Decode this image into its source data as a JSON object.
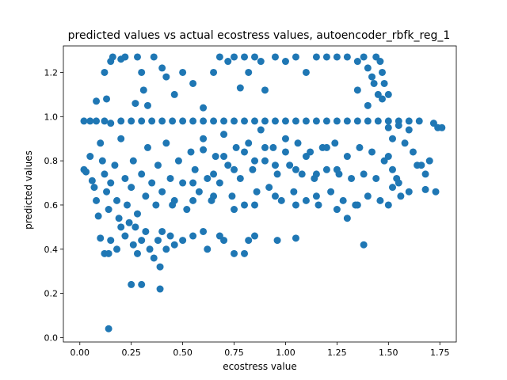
{
  "chart_data": {
    "type": "scatter",
    "title": "predicted values vs actual ecostress values, autoencoder_rbfk_reg_1",
    "xlabel": "ecostress value",
    "ylabel": "predicted values",
    "xlim": [
      -0.08,
      1.83
    ],
    "ylim": [
      -0.02,
      1.32
    ],
    "xticks": [
      0.0,
      0.25,
      0.5,
      0.75,
      1.0,
      1.25,
      1.5,
      1.75
    ],
    "xtick_labels": [
      "0.00",
      "0.25",
      "0.50",
      "0.75",
      "1.00",
      "1.25",
      "1.50",
      "1.75"
    ],
    "yticks": [
      0.0,
      0.2,
      0.4,
      0.6,
      0.8,
      1.0,
      1.2
    ],
    "ytick_labels": [
      "0.0",
      "0.2",
      "0.4",
      "0.6",
      "0.8",
      "1.0",
      "1.2"
    ],
    "grid": false,
    "marker_color": "#1f77b4",
    "points": [
      [
        0.02,
        0.98
      ],
      [
        0.05,
        0.98
      ],
      [
        0.08,
        0.98
      ],
      [
        0.12,
        0.98
      ],
      [
        0.15,
        0.97
      ],
      [
        0.2,
        0.98
      ],
      [
        0.25,
        0.98
      ],
      [
        0.3,
        0.98
      ],
      [
        0.35,
        0.98
      ],
      [
        0.4,
        0.98
      ],
      [
        0.45,
        0.98
      ],
      [
        0.5,
        0.98
      ],
      [
        0.55,
        0.98
      ],
      [
        0.6,
        0.98
      ],
      [
        0.65,
        0.98
      ],
      [
        0.7,
        0.98
      ],
      [
        0.75,
        0.98
      ],
      [
        0.8,
        0.98
      ],
      [
        0.85,
        0.98
      ],
      [
        0.9,
        0.98
      ],
      [
        0.95,
        0.98
      ],
      [
        1.0,
        0.98
      ],
      [
        1.05,
        0.98
      ],
      [
        1.1,
        0.98
      ],
      [
        1.15,
        0.98
      ],
      [
        1.2,
        0.98
      ],
      [
        1.25,
        0.98
      ],
      [
        1.3,
        0.98
      ],
      [
        1.35,
        0.98
      ],
      [
        1.4,
        0.98
      ],
      [
        1.45,
        0.98
      ],
      [
        1.5,
        0.98
      ],
      [
        1.55,
        0.98
      ],
      [
        1.6,
        0.98
      ],
      [
        1.65,
        0.98
      ],
      [
        0.02,
        0.76
      ],
      [
        0.03,
        0.75
      ],
      [
        0.05,
        0.82
      ],
      [
        0.06,
        0.71
      ],
      [
        0.07,
        0.68
      ],
      [
        0.08,
        0.62
      ],
      [
        0.09,
        0.55
      ],
      [
        0.1,
        0.88
      ],
      [
        0.11,
        0.8
      ],
      [
        0.12,
        0.74
      ],
      [
        0.13,
        0.66
      ],
      [
        0.14,
        0.58
      ],
      [
        0.15,
        0.7
      ],
      [
        0.17,
        0.78
      ],
      [
        0.18,
        0.62
      ],
      [
        0.19,
        0.54
      ],
      [
        0.2,
        0.9
      ],
      [
        0.22,
        0.72
      ],
      [
        0.23,
        0.6
      ],
      [
        0.25,
        0.68
      ],
      [
        0.26,
        0.8
      ],
      [
        0.28,
        0.56
      ],
      [
        0.3,
        0.74
      ],
      [
        0.32,
        0.64
      ],
      [
        0.33,
        0.86
      ],
      [
        0.35,
        0.7
      ],
      [
        0.37,
        0.6
      ],
      [
        0.38,
        0.78
      ],
      [
        0.4,
        0.66
      ],
      [
        0.42,
        0.88
      ],
      [
        0.44,
        0.72
      ],
      [
        0.46,
        0.62
      ],
      [
        0.48,
        0.8
      ],
      [
        0.5,
        0.7
      ],
      [
        0.52,
        0.58
      ],
      [
        0.54,
        0.84
      ],
      [
        0.56,
        0.76
      ],
      [
        0.58,
        0.66
      ],
      [
        0.6,
        0.9
      ],
      [
        0.62,
        0.72
      ],
      [
        0.64,
        0.62
      ],
      [
        0.66,
        0.82
      ],
      [
        0.68,
        0.7
      ],
      [
        0.7,
        0.92
      ],
      [
        0.72,
        0.78
      ],
      [
        0.74,
        0.64
      ],
      [
        0.76,
        0.86
      ],
      [
        0.78,
        0.72
      ],
      [
        0.8,
        0.6
      ],
      [
        0.82,
        0.88
      ],
      [
        0.84,
        0.76
      ],
      [
        0.86,
        0.66
      ],
      [
        0.88,
        0.94
      ],
      [
        0.9,
        0.8
      ],
      [
        0.92,
        0.68
      ],
      [
        0.94,
        0.86
      ],
      [
        0.96,
        0.74
      ],
      [
        0.98,
        0.62
      ],
      [
        1.0,
        0.9
      ],
      [
        1.02,
        0.78
      ],
      [
        1.04,
        0.66
      ],
      [
        1.06,
        0.88
      ],
      [
        1.08,
        0.74
      ],
      [
        1.1,
        0.62
      ],
      [
        1.12,
        0.84
      ],
      [
        1.14,
        0.72
      ],
      [
        1.16,
        0.6
      ],
      [
        1.18,
        0.86
      ],
      [
        1.2,
        0.76
      ],
      [
        1.22,
        0.66
      ],
      [
        1.24,
        0.88
      ],
      [
        1.26,
        0.74
      ],
      [
        1.28,
        0.62
      ],
      [
        1.3,
        0.82
      ],
      [
        1.32,
        0.72
      ],
      [
        1.34,
        0.6
      ],
      [
        1.36,
        0.86
      ],
      [
        1.38,
        0.74
      ],
      [
        1.4,
        0.64
      ],
      [
        1.42,
        0.84
      ],
      [
        1.44,
        0.72
      ],
      [
        1.46,
        0.62
      ],
      [
        1.48,
        0.8
      ],
      [
        0.15,
        0.44
      ],
      [
        0.18,
        0.4
      ],
      [
        0.22,
        0.46
      ],
      [
        0.26,
        0.42
      ],
      [
        0.28,
        0.38
      ],
      [
        0.3,
        0.44
      ],
      [
        0.32,
        0.48
      ],
      [
        0.34,
        0.4
      ],
      [
        0.36,
        0.36
      ],
      [
        0.38,
        0.44
      ],
      [
        0.4,
        0.48
      ],
      [
        0.42,
        0.4
      ],
      [
        0.44,
        0.46
      ],
      [
        0.46,
        0.42
      ],
      [
        0.5,
        0.44
      ],
      [
        0.55,
        0.46
      ],
      [
        0.6,
        0.48
      ],
      [
        0.62,
        0.4
      ],
      [
        0.2,
        0.5
      ],
      [
        0.24,
        0.52
      ],
      [
        0.27,
        0.5
      ],
      [
        0.1,
        0.45
      ],
      [
        0.12,
        0.38
      ],
      [
        0.14,
        0.38
      ],
      [
        0.39,
        0.32
      ],
      [
        0.39,
        0.22
      ],
      [
        0.3,
        0.24
      ],
      [
        0.14,
        0.04
      ],
      [
        0.08,
        1.07
      ],
      [
        0.12,
        1.2
      ],
      [
        0.13,
        1.08
      ],
      [
        0.15,
        1.25
      ],
      [
        0.16,
        1.27
      ],
      [
        0.2,
        1.26
      ],
      [
        0.22,
        1.27
      ],
      [
        0.28,
        1.27
      ],
      [
        0.27,
        1.06
      ],
      [
        0.3,
        1.2
      ],
      [
        0.31,
        1.12
      ],
      [
        0.33,
        1.05
      ],
      [
        0.36,
        1.27
      ],
      [
        0.4,
        1.22
      ],
      [
        0.42,
        1.18
      ],
      [
        0.46,
        1.1
      ],
      [
        0.5,
        1.2
      ],
      [
        0.55,
        1.15
      ],
      [
        0.6,
        1.04
      ],
      [
        0.65,
        1.2
      ],
      [
        0.68,
        1.27
      ],
      [
        0.72,
        1.25
      ],
      [
        0.75,
        1.27
      ],
      [
        0.78,
        1.13
      ],
      [
        0.8,
        1.27
      ],
      [
        0.82,
        1.2
      ],
      [
        0.85,
        1.27
      ],
      [
        0.88,
        1.25
      ],
      [
        0.9,
        1.12
      ],
      [
        0.95,
        1.27
      ],
      [
        1.0,
        1.25
      ],
      [
        1.05,
        1.27
      ],
      [
        1.1,
        1.2
      ],
      [
        1.15,
        1.27
      ],
      [
        1.2,
        1.27
      ],
      [
        1.25,
        1.27
      ],
      [
        1.3,
        1.27
      ],
      [
        1.35,
        1.25
      ],
      [
        1.38,
        1.27
      ],
      [
        1.4,
        1.22
      ],
      [
        1.42,
        1.18
      ],
      [
        1.44,
        1.27
      ],
      [
        1.46,
        1.25
      ],
      [
        1.47,
        1.2
      ],
      [
        1.45,
        1.1
      ],
      [
        1.4,
        1.05
      ],
      [
        1.43,
        1.15
      ],
      [
        1.47,
        1.08
      ],
      [
        1.5,
        1.1
      ],
      [
        1.48,
        1.15
      ],
      [
        1.35,
        1.12
      ],
      [
        1.5,
        0.95
      ],
      [
        1.52,
        0.9
      ],
      [
        1.55,
        0.96
      ],
      [
        1.58,
        0.88
      ],
      [
        1.6,
        0.94
      ],
      [
        1.62,
        0.84
      ],
      [
        1.64,
        0.78
      ],
      [
        1.66,
        0.78
      ],
      [
        1.68,
        0.74
      ],
      [
        1.7,
        0.8
      ],
      [
        1.72,
        0.97
      ],
      [
        1.74,
        0.95
      ],
      [
        1.76,
        0.95
      ],
      [
        1.73,
        0.66
      ],
      [
        1.68,
        0.67
      ],
      [
        1.55,
        0.7
      ],
      [
        1.56,
        0.64
      ],
      [
        1.6,
        0.66
      ],
      [
        1.5,
        0.82
      ],
      [
        1.52,
        0.76
      ],
      [
        1.54,
        0.72
      ],
      [
        1.52,
        0.68
      ],
      [
        1.5,
        0.6
      ],
      [
        1.38,
        0.42
      ],
      [
        1.3,
        0.54
      ],
      [
        1.05,
        0.45
      ],
      [
        0.96,
        0.44
      ],
      [
        0.85,
        0.46
      ],
      [
        0.8,
        0.38
      ],
      [
        0.75,
        0.38
      ],
      [
        0.7,
        0.44
      ],
      [
        0.68,
        0.46
      ],
      [
        0.82,
        0.44
      ],
      [
        0.25,
        0.24
      ],
      [
        0.6,
        0.85
      ],
      [
        0.7,
        0.82
      ],
      [
        0.8,
        0.84
      ],
      [
        0.9,
        0.86
      ],
      [
        1.0,
        0.84
      ],
      [
        1.1,
        0.82
      ],
      [
        1.2,
        0.86
      ],
      [
        0.55,
        0.7
      ],
      [
        0.65,
        0.74
      ],
      [
        0.75,
        0.76
      ],
      [
        0.85,
        0.8
      ],
      [
        0.95,
        0.78
      ],
      [
        1.05,
        0.76
      ],
      [
        1.15,
        0.74
      ],
      [
        1.25,
        0.76
      ],
      [
        0.45,
        0.6
      ],
      [
        0.55,
        0.62
      ],
      [
        0.65,
        0.64
      ],
      [
        0.75,
        0.58
      ],
      [
        0.85,
        0.6
      ],
      [
        0.95,
        0.64
      ],
      [
        1.05,
        0.6
      ],
      [
        1.15,
        0.64
      ],
      [
        1.25,
        0.58
      ],
      [
        1.35,
        0.6
      ]
    ]
  }
}
